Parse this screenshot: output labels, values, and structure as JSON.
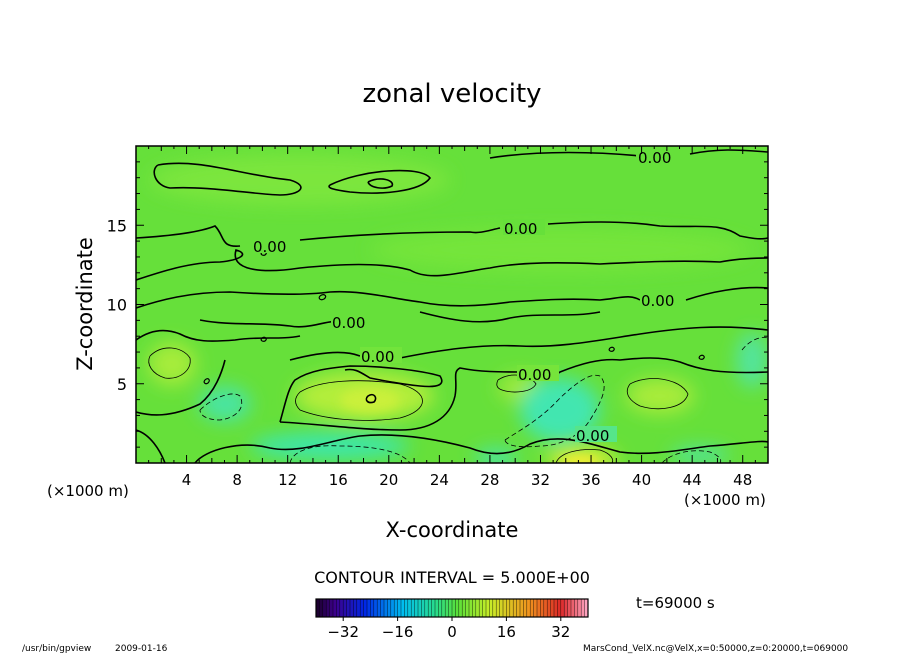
{
  "chart_data": {
    "type": "heatmap",
    "title": "zonal velocity",
    "xlabel": "X-coordinate",
    "ylabel": "Z-coordinate",
    "x_unit": "(×1000 m)",
    "x_ticks": [
      4,
      8,
      12,
      16,
      20,
      24,
      28,
      32,
      36,
      40,
      44,
      48
    ],
    "y_ticks": [
      5,
      10,
      15
    ],
    "xlim": [
      0,
      50
    ],
    "ylim": [
      0,
      20
    ],
    "contour_interval_label": "CONTOUR INTERVAL = 5.000E+00",
    "contour_labels": [
      "0.00",
      "0.00",
      "0.00",
      "0.00",
      "0.00",
      "0.00",
      "0.00",
      "0.00"
    ],
    "colorbar": {
      "range": [
        -40,
        40
      ],
      "ticks": [
        -32,
        -16,
        0,
        16,
        32
      ],
      "tick_labels": [
        "−32",
        "−16",
        "0",
        "16",
        "32"
      ],
      "colormap": "rainbow"
    },
    "time_label": "t=69000 s",
    "cells": [
      {
        "x": 0,
        "z": 0,
        "v": 0
      },
      {
        "x": 4.5,
        "z": 6.5,
        "v": 4
      },
      {
        "x": 19,
        "z": 4,
        "v": 6
      },
      {
        "x": 35,
        "z": 0.4,
        "v": 12
      },
      {
        "x": 38.5,
        "z": 4.5,
        "v": 4
      },
      {
        "x": 43,
        "z": 4.3,
        "v": 5
      },
      {
        "x": 30,
        "z": 5,
        "v": 4
      },
      {
        "x": 17,
        "z": 1.5,
        "v": -4
      },
      {
        "x": 34,
        "z": 3,
        "v": -5
      },
      {
        "x": 9,
        "z": 4,
        "v": -3
      }
    ]
  },
  "footer": {
    "program": "/usr/bin/gpview",
    "date": "2009-01-16",
    "source": "MarsCond_VelX.nc@VelX,x=0:50000,z=0:20000,t=069000"
  }
}
